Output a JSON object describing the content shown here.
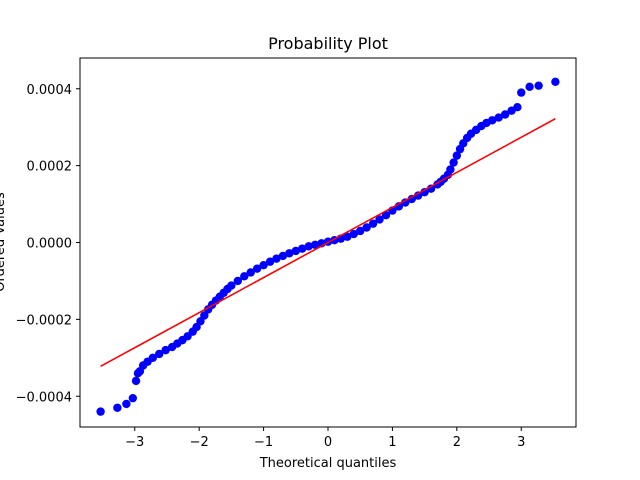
{
  "chart_data": {
    "type": "scatter",
    "title": "Probability Plot",
    "xlabel": "Theoretical quantiles",
    "ylabel": "Ordered Values",
    "xlim": [
      -3.85,
      3.85
    ],
    "ylim": [
      -0.00048,
      0.00048
    ],
    "x_ticks": [
      -3,
      -2,
      -1,
      0,
      1,
      2,
      3
    ],
    "x_tick_labels": [
      "−3",
      "−2",
      "−1",
      "0",
      "1",
      "2",
      "3"
    ],
    "y_ticks": [
      -0.0004,
      -0.0002,
      0.0,
      0.0002,
      0.0004
    ],
    "y_tick_labels": [
      "−0.0004",
      "−0.0002",
      "0.0000",
      "0.0002",
      "0.0004"
    ],
    "grid": false,
    "legend": "none",
    "colors": {
      "points": "#0000ff",
      "fit_line": "#ff0000"
    },
    "series": [
      {
        "kind": "points",
        "x": [
          -3.53,
          -3.27,
          -3.13,
          -3.03,
          -2.98,
          -2.95,
          -2.92,
          -2.87,
          -2.8,
          -2.72,
          -2.62,
          -2.52,
          -2.42,
          -2.34,
          -2.26,
          -2.18,
          -2.1,
          -2.04,
          -1.98,
          -1.92,
          -1.86,
          -1.8,
          -1.74,
          -1.68,
          -1.62,
          -1.56,
          -1.5,
          -1.4,
          -1.3,
          -1.2,
          -1.1,
          -1.0,
          -0.9,
          -0.8,
          -0.7,
          -0.6,
          -0.5,
          -0.4,
          -0.3,
          -0.2,
          -0.1,
          0.0,
          0.1,
          0.2,
          0.3,
          0.4,
          0.5,
          0.6,
          0.7,
          0.8,
          0.9,
          1.0,
          1.1,
          1.2,
          1.3,
          1.4,
          1.5,
          1.6,
          1.7,
          1.75,
          1.8,
          1.86,
          1.9,
          1.95,
          2.0,
          2.05,
          2.1,
          2.16,
          2.22,
          2.3,
          2.38,
          2.46,
          2.55,
          2.65,
          2.75,
          2.85,
          2.94,
          3.0,
          3.13,
          3.27,
          3.53
        ],
        "y": [
          -0.00044,
          -0.00043,
          -0.00042,
          -0.000405,
          -0.00036,
          -0.00034,
          -0.000335,
          -0.00032,
          -0.00031,
          -0.0003,
          -0.00029,
          -0.00028,
          -0.000272,
          -0.000263,
          -0.000254,
          -0.000244,
          -0.000232,
          -0.00022,
          -0.000205,
          -0.00019,
          -0.000174,
          -0.000162,
          -0.000151,
          -0.000141,
          -0.000131,
          -0.000121,
          -0.000112,
          -0.0001,
          -8.8e-05,
          -7.8e-05,
          -6.8e-05,
          -5.9e-05,
          -5e-05,
          -4.2e-05,
          -3.5e-05,
          -2.8e-05,
          -2.2e-05,
          -1.6e-05,
          -1e-05,
          -6e-06,
          -2e-06,
          2e-06,
          6e-06,
          1e-05,
          1.5e-05,
          2.2e-05,
          3e-05,
          3.9e-05,
          4.9e-05,
          6e-05,
          7.1e-05,
          8.3e-05,
          9.4e-05,
          0.000104,
          0.000113,
          0.000122,
          0.000131,
          0.00014,
          0.000151,
          0.000158,
          0.000166,
          0.000176,
          0.00019,
          0.000208,
          0.000226,
          0.000243,
          0.000258,
          0.000272,
          0.000283,
          0.000293,
          0.000303,
          0.000311,
          0.000318,
          0.000325,
          0.000333,
          0.000343,
          0.000352,
          0.00039,
          0.000405,
          0.000408,
          0.000418
        ]
      },
      {
        "kind": "line",
        "x": [
          -3.53,
          3.53
        ],
        "y": [
          -0.000322,
          0.000322
        ]
      }
    ]
  }
}
